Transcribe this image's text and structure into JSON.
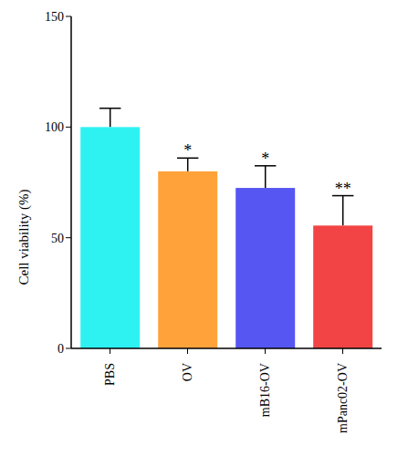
{
  "chart_data": {
    "type": "bar",
    "categories": [
      "PBS",
      "OV",
      "mB16-OV",
      "mPanc02-OV"
    ],
    "values": [
      100,
      80,
      72.5,
      55.5
    ],
    "errors": [
      8.5,
      6,
      10,
      13.5
    ],
    "colors": [
      "#2ef2f2",
      "#ffa23a",
      "#5656f2",
      "#f24444"
    ],
    "y_label": "Cell viability (%)",
    "ylim": [
      0,
      150
    ],
    "yticks": [
      0,
      50,
      100,
      150
    ],
    "grid": false,
    "annotations": [
      {
        "category": "OV",
        "text": "*"
      },
      {
        "category": "mB16-OV",
        "text": "*"
      },
      {
        "category": "mPanc02-OV",
        "text": "**"
      }
    ]
  }
}
